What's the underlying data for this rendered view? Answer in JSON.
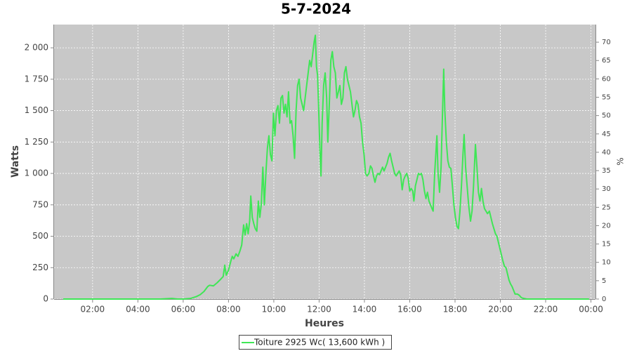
{
  "chart_data": {
    "type": "line",
    "title": "5-7-2024",
    "x_label": "Heures",
    "y_label": "Watts",
    "y2_label": "%",
    "grid": true,
    "legend": "bottom",
    "xlim": [
      18,
      1452
    ],
    "xticks": [
      {
        "value": 120,
        "label": "02:00"
      },
      {
        "value": 240,
        "label": "04:00"
      },
      {
        "value": 360,
        "label": "06:00"
      },
      {
        "value": 480,
        "label": "08:00"
      },
      {
        "value": 600,
        "label": "10:00"
      },
      {
        "value": 720,
        "label": "12:00"
      },
      {
        "value": 840,
        "label": "14:00"
      },
      {
        "value": 960,
        "label": "16:00"
      },
      {
        "value": 1080,
        "label": "18:00"
      },
      {
        "value": 1200,
        "label": "20:00"
      },
      {
        "value": 1320,
        "label": "22:00"
      },
      {
        "value": 1440,
        "label": "00:00"
      }
    ],
    "ylim": [
      0,
      2185
    ],
    "yticks": [
      0,
      250,
      500,
      750,
      {
        "value": 1000,
        "label": "1 000"
      },
      {
        "value": 1250,
        "label": "1 250"
      },
      {
        "value": 1500,
        "label": "1 500"
      },
      {
        "value": 1750,
        "label": "1 750"
      },
      {
        "value": 2000,
        "label": "2 000"
      }
    ],
    "y2lim": [
      0,
      74.8
    ],
    "y2ticks": [
      0,
      5,
      10,
      15,
      20,
      25,
      30,
      35,
      40,
      45,
      50,
      55,
      60,
      65,
      70
    ],
    "x": [
      42,
      100,
      200,
      300,
      330,
      345,
      360,
      380,
      395,
      405,
      415,
      425,
      430,
      440,
      450,
      460,
      466,
      470,
      474,
      480,
      486,
      490,
      494,
      500,
      505,
      510,
      515,
      520,
      524,
      528,
      532,
      536,
      539,
      543,
      547,
      551,
      555,
      559,
      563,
      567,
      571,
      575,
      579,
      583,
      587,
      591,
      595,
      599,
      603,
      607,
      611,
      615,
      619,
      623,
      627,
      631,
      635,
      639,
      643,
      647,
      651,
      655,
      659,
      663,
      667,
      671,
      675,
      679,
      683,
      687,
      691,
      695,
      699,
      703,
      707,
      710,
      713,
      716,
      719,
      722,
      725,
      728,
      732,
      736,
      740,
      743,
      747,
      751,
      755,
      759,
      763,
      767,
      771,
      775,
      779,
      783,
      787,
      791,
      795,
      799,
      803,
      807,
      811,
      815,
      819,
      823,
      827,
      831,
      835,
      839,
      843,
      847,
      852,
      856,
      860,
      864,
      868,
      872,
      876,
      880,
      884,
      888,
      892,
      896,
      900,
      904,
      908,
      912,
      916,
      920,
      924,
      928,
      932,
      936,
      940,
      944,
      948,
      952,
      956,
      960,
      964,
      968,
      971,
      975,
      979,
      983,
      987,
      991,
      995,
      999,
      1003,
      1007,
      1011,
      1015,
      1019,
      1022,
      1026,
      1030,
      1032,
      1035,
      1039,
      1043,
      1047,
      1050,
      1053,
      1057,
      1061,
      1065,
      1069,
      1073,
      1077,
      1081,
      1085,
      1089,
      1093,
      1097,
      1101,
      1104,
      1108,
      1112,
      1116,
      1121,
      1125,
      1129,
      1134,
      1138,
      1142,
      1146,
      1150,
      1154,
      1158,
      1162,
      1166,
      1171,
      1175,
      1179,
      1183,
      1187,
      1191,
      1195,
      1199,
      1203,
      1207,
      1211,
      1215,
      1219,
      1223,
      1227,
      1231,
      1235,
      1239,
      1245,
      1250,
      1256,
      1262,
      1270,
      1300,
      1350,
      1400,
      1435
    ],
    "series": [
      {
        "name": "Toiture 2925 Wc( 13,600 kWh )",
        "color": "#3fe656",
        "values": [
          0,
          0,
          0,
          0,
          5,
          0,
          0,
          5,
          20,
          35,
          60,
          100,
          110,
          105,
          130,
          160,
          180,
          270,
          190,
          230,
          300,
          340,
          320,
          360,
          340,
          380,
          430,
          590,
          510,
          600,
          520,
          620,
          820,
          650,
          600,
          560,
          540,
          780,
          650,
          760,
          1050,
          750,
          1000,
          1200,
          1300,
          1150,
          1100,
          1480,
          1300,
          1500,
          1540,
          1400,
          1600,
          1620,
          1480,
          1550,
          1450,
          1650,
          1400,
          1420,
          1300,
          1120,
          1500,
          1700,
          1750,
          1600,
          1550,
          1500,
          1600,
          1700,
          1800,
          1900,
          1850,
          1950,
          2050,
          2100,
          1850,
          1780,
          1500,
          1200,
          980,
          1400,
          1700,
          1800,
          1600,
          1250,
          1550,
          1900,
          1970,
          1850,
          1800,
          1600,
          1650,
          1700,
          1550,
          1600,
          1800,
          1850,
          1750,
          1700,
          1650,
          1550,
          1450,
          1500,
          1580,
          1550,
          1450,
          1400,
          1250,
          1150,
          1000,
          980,
          1000,
          1060,
          1040,
          980,
          930,
          980,
          1000,
          990,
          1020,
          1050,
          1020,
          1050,
          1080,
          1130,
          1160,
          1100,
          1050,
          1000,
          980,
          1000,
          1020,
          990,
          870,
          950,
          980,
          1000,
          960,
          860,
          880,
          860,
          780,
          900,
          950,
          1000,
          990,
          1000,
          950,
          860,
          800,
          850,
          780,
          750,
          720,
          700,
          1000,
          1200,
          1300,
          1000,
          850,
          1050,
          1500,
          1830,
          1500,
          1250,
          1100,
          1050,
          1040,
          900,
          750,
          650,
          580,
          560,
          700,
          900,
          1150,
          1310,
          1050,
          900,
          750,
          620,
          700,
          900,
          1230,
          1050,
          850,
          780,
          880,
          780,
          720,
          700,
          680,
          700,
          650,
          600,
          560,
          520,
          500,
          450,
          400,
          350,
          300,
          260,
          250,
          200,
          150,
          120,
          100,
          70,
          40,
          40,
          30,
          10,
          5,
          0,
          0,
          0,
          0,
          0
        ]
      }
    ]
  }
}
